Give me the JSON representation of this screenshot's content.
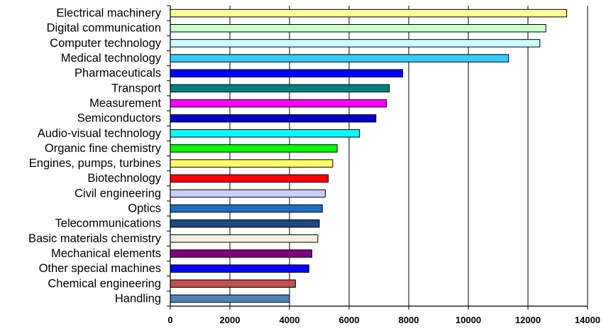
{
  "chart_data": {
    "type": "bar",
    "orientation": "horizontal",
    "title": "",
    "xlabel": "",
    "ylabel": "",
    "xlim": [
      0,
      14000
    ],
    "x_ticks": [
      0,
      2000,
      4000,
      6000,
      8000,
      10000,
      12000,
      14000
    ],
    "grid": "vertical gridlines",
    "legend": "none",
    "categories": [
      "Electrical machinery",
      "Digital communication",
      "Computer technology",
      "Medical technology",
      "Pharmaceuticals",
      "Transport",
      "Measurement",
      "Semiconductors",
      "Audio-visual technology",
      "Organic fine chemistry",
      "Engines, pumps, turbines",
      "Biotechnology",
      "Civil engineering",
      "Optics",
      "Telecommunications",
      "Basic materials chemistry",
      "Mechanical elements",
      "Other special machines",
      "Chemical engineering",
      "Handling"
    ],
    "values": [
      13300,
      12600,
      12400,
      11350,
      7800,
      7350,
      7250,
      6900,
      6350,
      5600,
      5450,
      5300,
      5200,
      5100,
      5000,
      4950,
      4750,
      4650,
      4200,
      4000
    ],
    "colors": [
      "#ffff99",
      "#ccffcc",
      "#ccffff",
      "#33ccff",
      "#0000ff",
      "#008080",
      "#ff00ff",
      "#0000cc",
      "#00ffff",
      "#00ff00",
      "#ffff66",
      "#ff0000",
      "#ccccff",
      "#1f6fc0",
      "#1f497d",
      "#f5f0e0",
      "#800080",
      "#0000ff",
      "#c0504d",
      "#4f81bd"
    ]
  }
}
